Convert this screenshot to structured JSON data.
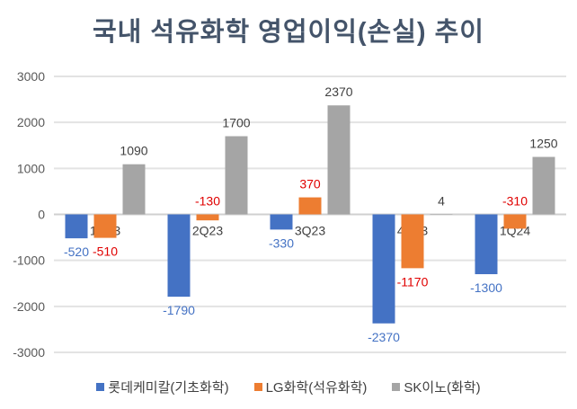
{
  "chart_data": {
    "type": "bar",
    "title": "국내 석유화학 영업이익(손실) 추이",
    "categories": [
      "1Q23",
      "2Q23",
      "3Q23",
      "4Q23",
      "1Q24"
    ],
    "series": [
      {
        "name": "롯데케미칼(기초화학)",
        "values": [
          -520,
          -1790,
          -330,
          -2370,
          -1300
        ],
        "color": "#4472c4",
        "label_color": "#4472c4"
      },
      {
        "name": "LG화학(석유화학)",
        "values": [
          -510,
          -130,
          370,
          -1170,
          -310
        ],
        "color": "#ed7d31",
        "label_color": "#e00000"
      },
      {
        "name": "SK이노(화학)",
        "values": [
          1090,
          1700,
          2370,
          4,
          1250
        ],
        "color": "#a5a5a5",
        "label_color": "#404040"
      }
    ],
    "ylim": [
      -3000,
      3000
    ],
    "yticks": [
      3000,
      2000,
      1000,
      0,
      -1000,
      -2000,
      -3000
    ],
    "xlabel": "",
    "ylabel": "",
    "grid": true,
    "legend": "bottom"
  }
}
